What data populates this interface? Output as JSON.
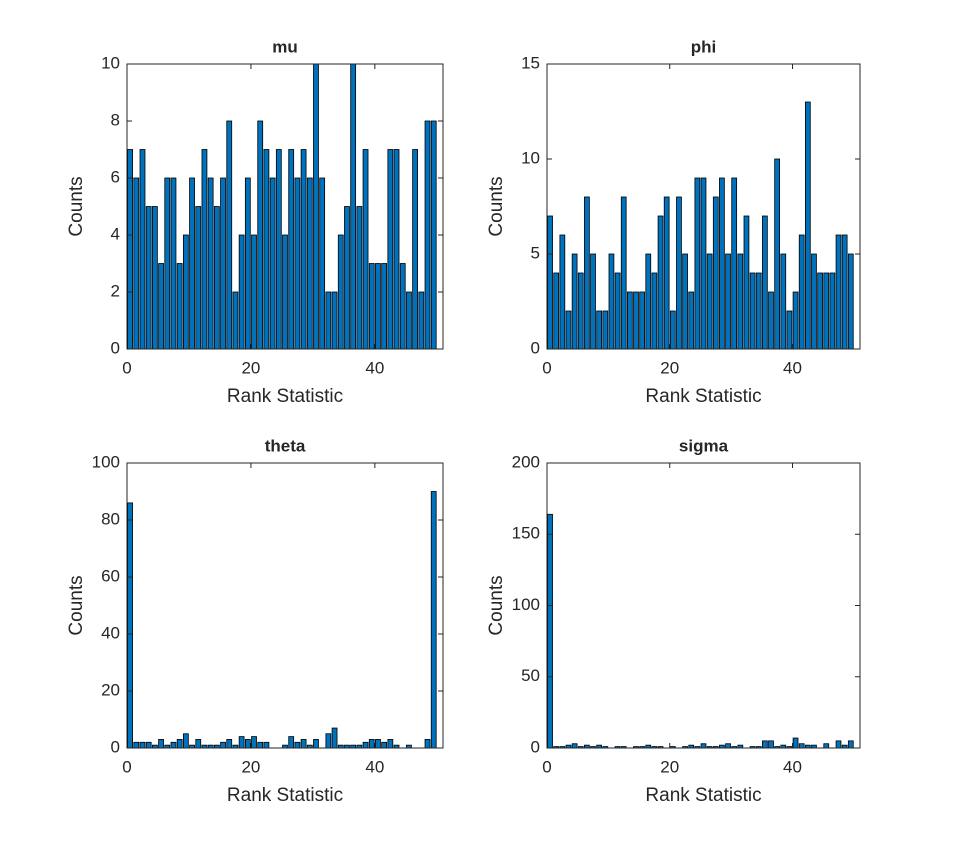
{
  "chart_data": [
    {
      "type": "histogram",
      "title": "mu",
      "xlabel": "Rank Statistic",
      "ylabel": "Counts",
      "color": "#0072bd",
      "bins": [
        0,
        1,
        2,
        3,
        4,
        5,
        6,
        7,
        8,
        9,
        10,
        11,
        12,
        13,
        14,
        15,
        16,
        17,
        18,
        19,
        20,
        21,
        22,
        23,
        24,
        25,
        26,
        27,
        28,
        29,
        30,
        31,
        32,
        33,
        34,
        35,
        36,
        37,
        38,
        39,
        40,
        41,
        42,
        43,
        44,
        45,
        46,
        47,
        48,
        49,
        50
      ],
      "values": [
        7,
        6,
        7,
        5,
        5,
        3,
        6,
        6,
        3,
        4,
        6,
        5,
        7,
        6,
        5,
        6,
        8,
        2,
        4,
        6,
        4,
        8,
        7,
        6,
        7,
        4,
        7,
        6,
        7,
        6,
        10,
        6,
        2,
        2,
        4,
        5,
        10,
        5,
        7,
        3,
        3,
        3,
        7,
        7,
        3,
        2,
        7,
        2,
        8,
        8
      ],
      "xlim": [
        0,
        51
      ],
      "xticks": [
        0,
        20,
        40
      ],
      "ylim": [
        0,
        10
      ],
      "yticks": [
        0,
        2,
        4,
        6,
        8,
        10
      ]
    },
    {
      "type": "histogram",
      "title": "phi",
      "xlabel": "Rank Statistic",
      "ylabel": "Counts",
      "color": "#0072bd",
      "bins": [
        0,
        1,
        2,
        3,
        4,
        5,
        6,
        7,
        8,
        9,
        10,
        11,
        12,
        13,
        14,
        15,
        16,
        17,
        18,
        19,
        20,
        21,
        22,
        23,
        24,
        25,
        26,
        27,
        28,
        29,
        30,
        31,
        32,
        33,
        34,
        35,
        36,
        37,
        38,
        39,
        40,
        41,
        42,
        43,
        44,
        45,
        46,
        47,
        48,
        49,
        50
      ],
      "values": [
        7,
        4,
        6,
        2,
        5,
        4,
        8,
        5,
        2,
        2,
        5,
        4,
        8,
        3,
        3,
        3,
        5,
        4,
        7,
        8,
        2,
        8,
        5,
        3,
        9,
        9,
        5,
        8,
        9,
        5,
        9,
        5,
        7,
        4,
        4,
        7,
        3,
        10,
        5,
        2,
        3,
        6,
        13,
        5,
        4,
        4,
        4,
        6,
        6,
        5
      ],
      "xlim": [
        0,
        51
      ],
      "xticks": [
        0,
        20,
        40
      ],
      "ylim": [
        0,
        15
      ],
      "yticks": [
        0,
        5,
        10,
        15
      ]
    },
    {
      "type": "histogram",
      "title": "theta",
      "xlabel": "Rank Statistic",
      "ylabel": "Counts",
      "color": "#0072bd",
      "bins": [
        0,
        1,
        2,
        3,
        4,
        5,
        6,
        7,
        8,
        9,
        10,
        11,
        12,
        13,
        14,
        15,
        16,
        17,
        18,
        19,
        20,
        21,
        22,
        23,
        24,
        25,
        26,
        27,
        28,
        29,
        30,
        31,
        32,
        33,
        34,
        35,
        36,
        37,
        38,
        39,
        40,
        41,
        42,
        43,
        44,
        45,
        46,
        47,
        48,
        49,
        50
      ],
      "values": [
        86,
        2,
        2,
        2,
        1,
        3,
        1,
        2,
        3,
        5,
        1,
        3,
        1,
        1,
        1,
        2,
        3,
        1,
        4,
        3,
        4,
        2,
        2,
        0,
        0,
        1,
        4,
        2,
        3,
        1,
        3,
        0,
        5,
        7,
        1,
        1,
        1,
        1,
        2,
        3,
        3,
        2,
        3,
        1,
        0,
        1,
        0,
        0,
        3,
        90
      ],
      "xlim": [
        0,
        51
      ],
      "xticks": [
        0,
        20,
        40
      ],
      "ylim": [
        0,
        100
      ],
      "yticks": [
        0,
        20,
        40,
        60,
        80,
        100
      ]
    },
    {
      "type": "histogram",
      "title": "sigma",
      "xlabel": "Rank Statistic",
      "ylabel": "Counts",
      "color": "#0072bd",
      "bins": [
        0,
        1,
        2,
        3,
        4,
        5,
        6,
        7,
        8,
        9,
        10,
        11,
        12,
        13,
        14,
        15,
        16,
        17,
        18,
        19,
        20,
        21,
        22,
        23,
        24,
        25,
        26,
        27,
        28,
        29,
        30,
        31,
        32,
        33,
        34,
        35,
        36,
        37,
        38,
        39,
        40,
        41,
        42,
        43,
        44,
        45,
        46,
        47,
        48,
        49,
        50
      ],
      "values": [
        164,
        1,
        1,
        2,
        3,
        1,
        2,
        1,
        2,
        1,
        0,
        1,
        1,
        0,
        1,
        1,
        2,
        1,
        1,
        0,
        1,
        0,
        1,
        2,
        1,
        3,
        1,
        1,
        2,
        3,
        1,
        2,
        0,
        1,
        1,
        5,
        5,
        1,
        2,
        1,
        7,
        3,
        2,
        2,
        0,
        3,
        0,
        5,
        2,
        5
      ],
      "xlim": [
        0,
        51
      ],
      "xticks": [
        0,
        20,
        40
      ],
      "ylim": [
        0,
        200
      ],
      "yticks": [
        0,
        50,
        100,
        150,
        200
      ]
    }
  ]
}
